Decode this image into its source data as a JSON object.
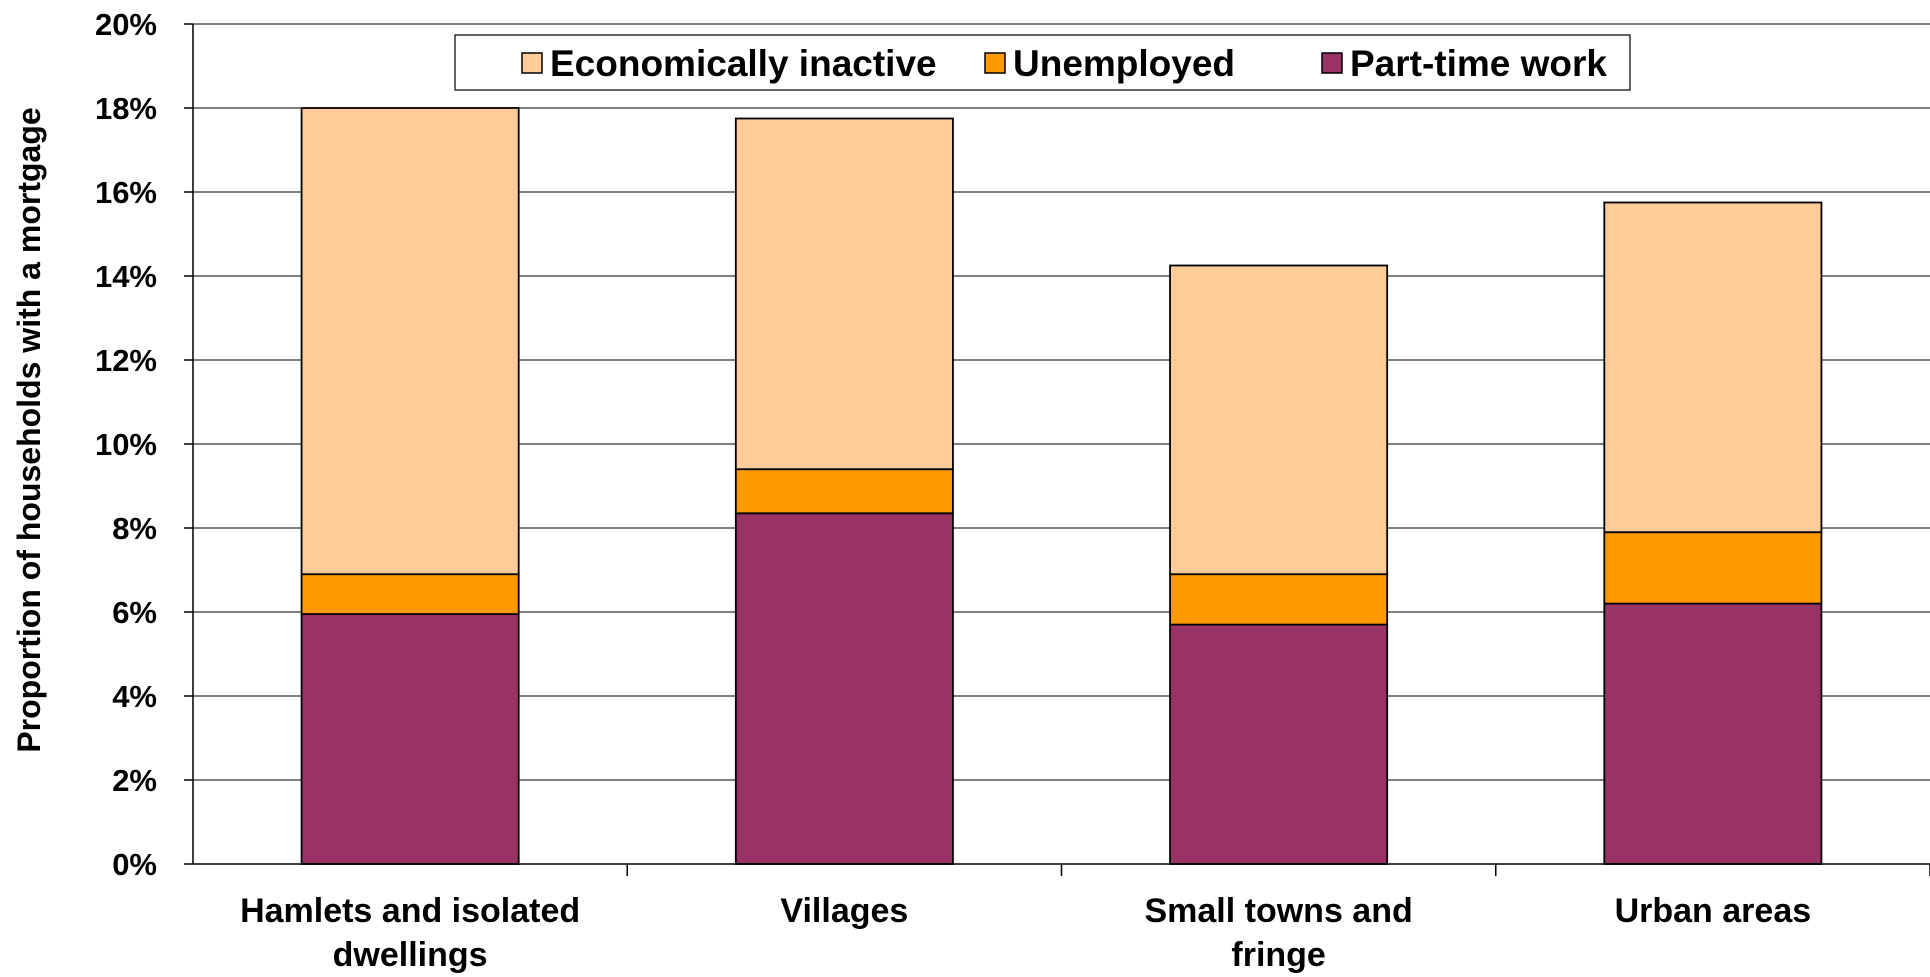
{
  "chart_data": {
    "type": "bar",
    "stacked": true,
    "categories": [
      [
        "Hamlets and isolated",
        "dwellings"
      ],
      [
        "Villages"
      ],
      [
        "Small towns and",
        "fringe"
      ],
      [
        "Urban areas"
      ]
    ],
    "series": [
      {
        "name": "Part-time work",
        "color": "#993366",
        "values": [
          5.95,
          8.35,
          5.7,
          6.2
        ]
      },
      {
        "name": "Unemployed",
        "color": "#FF9900",
        "values": [
          0.95,
          1.05,
          1.2,
          1.7
        ]
      },
      {
        "name": "Economically inactive",
        "color": "#FFCC99",
        "values": [
          11.1,
          8.35,
          7.35,
          7.85
        ]
      }
    ],
    "legend_order": [
      "Economically inactive",
      "Unemployed",
      "Part-time work"
    ],
    "legend_position": "top-center",
    "ylabel": "Proportion of households with a mortgage",
    "xlabel": "",
    "ylim": [
      0,
      20
    ],
    "yticks": [
      "0%",
      "2%",
      "4%",
      "6%",
      "8%",
      "10%",
      "12%",
      "14%",
      "16%",
      "18%",
      "20%"
    ],
    "grid": true
  }
}
